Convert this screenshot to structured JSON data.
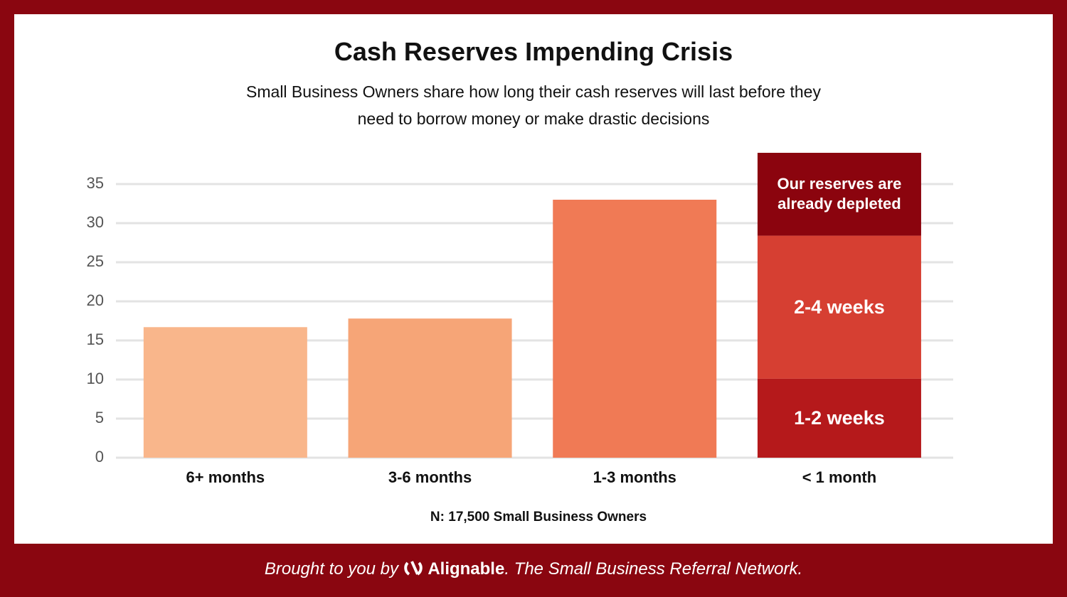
{
  "chart_data": {
    "type": "stacked-bar",
    "title": "Cash Reserves Impending Crisis",
    "subtitle": "Small Business Owners share how long their cash reserves will last before they need to borrow money or make drastic decisions",
    "categories": [
      "6+ months",
      "3-6 months",
      "1-3 months",
      "< 1 month"
    ],
    "series": [
      {
        "colors": [
          "#f9b68b",
          "#f6a577",
          "#f07a55",
          null
        ],
        "values": [
          16.7,
          17.8,
          33.0,
          null
        ]
      },
      {
        "name": "1-2 weeks",
        "color": "#b5191b",
        "values": [
          null,
          null,
          null,
          10.1
        ]
      },
      {
        "name": "2-4 weeks",
        "color": "#d63f32",
        "values": [
          null,
          null,
          null,
          18.3
        ]
      },
      {
        "name": "Our reserves are already depleted",
        "color": "#8b040e",
        "values": [
          null,
          null,
          null,
          10.6
        ]
      }
    ],
    "ylim": [
      0,
      39
    ],
    "yticks": [
      0,
      5,
      10,
      15,
      20,
      25,
      30,
      35
    ],
    "grid": true,
    "note": "N: 17,500 Small Business Owners"
  },
  "footer": {
    "prefix": "Brought to you by",
    "brand": "Alignable",
    "suffix": ". The Small Business Referral Network."
  }
}
